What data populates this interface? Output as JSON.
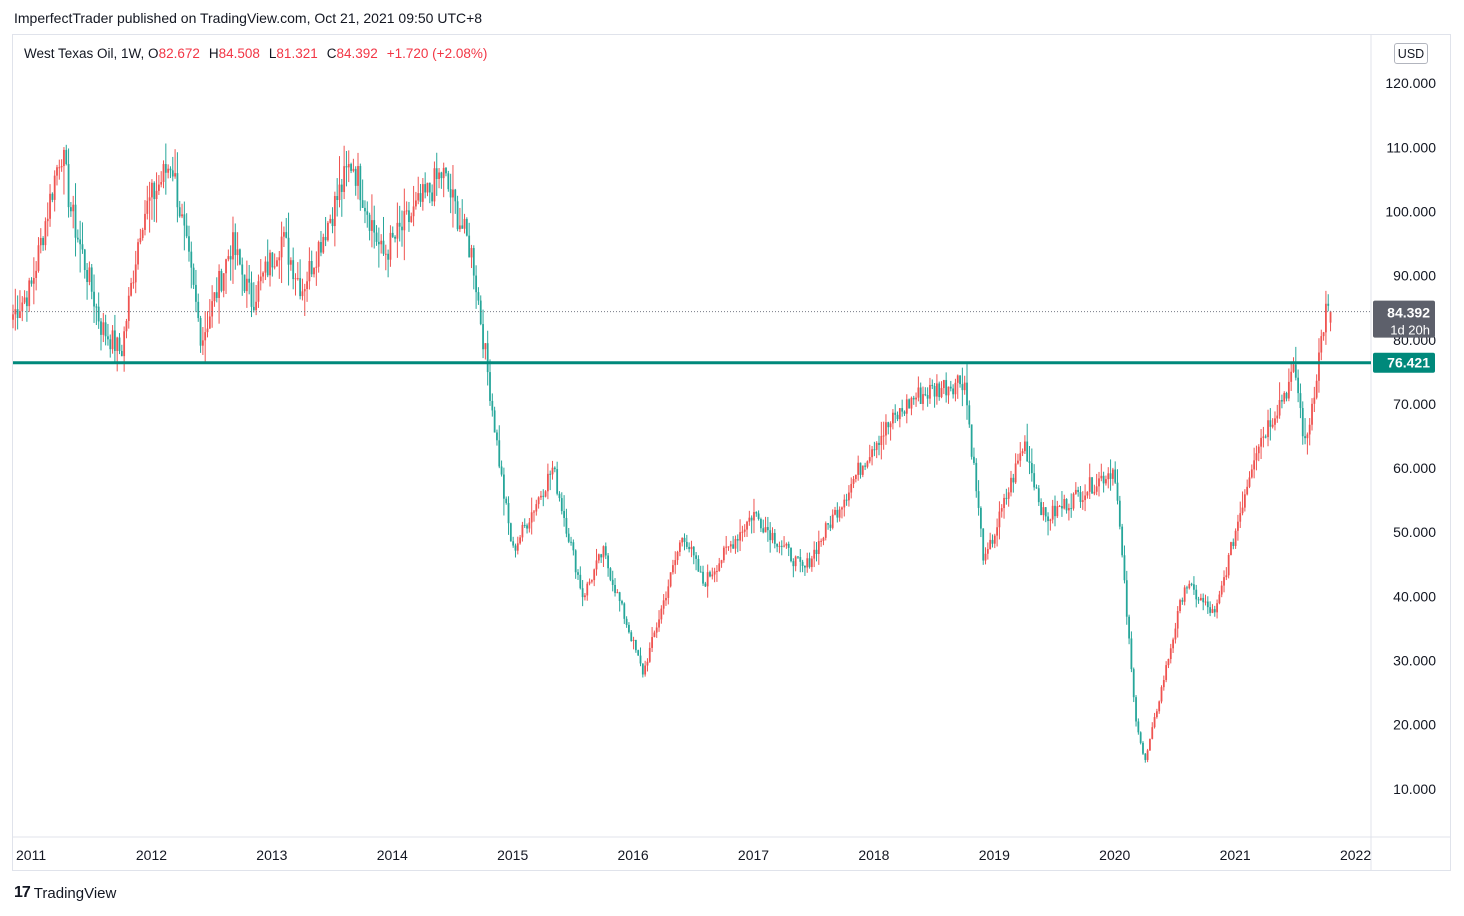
{
  "publish_line": "ImperfectTrader published on TradingView.com, Oct 21, 2021 09:50 UTC+8",
  "legend": {
    "symbol": "West Texas Oil, 1W, ",
    "o_key": "O",
    "o_val": "82.672",
    "h_key": "H",
    "h_val": "84.508",
    "l_key": "L",
    "l_val": "81.321",
    "c_key": "C",
    "c_val": "84.392",
    "change": "+1.720 (+2.08%)"
  },
  "currency_button": "USD",
  "footer_brand": "TradingView",
  "footer_logo": "17",
  "colors": {
    "up": "#ef5350",
    "down": "#26a69a",
    "support_line": "#00897b",
    "last_price_bg": "#5d606b"
  },
  "chart_data": {
    "type": "candlestick",
    "title": "West Texas Oil, 1W",
    "ylim": [
      2.5,
      127.5
    ],
    "y_ticks": [
      "120.000",
      "110.000",
      "100.000",
      "90.000",
      "80.000",
      "70.000",
      "60.000",
      "50.000",
      "40.000",
      "30.000",
      "20.000",
      "10.000"
    ],
    "x_ticks": [
      "2011",
      "2012",
      "2013",
      "2014",
      "2015",
      "2016",
      "2017",
      "2018",
      "2019",
      "2020",
      "2021",
      "2022"
    ],
    "last_price": {
      "value": 84.392,
      "label": "84.392",
      "countdown": "1d 20h"
    },
    "support_level": {
      "value": 76.421,
      "label": "76.421"
    },
    "approx_weekly_closes": [
      {
        "date": "2011-01",
        "close": 88
      },
      {
        "date": "2011-04",
        "close": 110
      },
      {
        "date": "2011-05",
        "close": 100
      },
      {
        "date": "2011-08",
        "close": 82
      },
      {
        "date": "2011-10",
        "close": 78
      },
      {
        "date": "2011-12",
        "close": 99
      },
      {
        "date": "2012-03",
        "close": 108
      },
      {
        "date": "2012-06",
        "close": 80
      },
      {
        "date": "2012-09",
        "close": 95
      },
      {
        "date": "2012-11",
        "close": 86
      },
      {
        "date": "2013-02",
        "close": 96
      },
      {
        "date": "2013-04",
        "close": 88
      },
      {
        "date": "2013-09",
        "close": 108
      },
      {
        "date": "2013-12",
        "close": 93
      },
      {
        "date": "2014-06",
        "close": 106
      },
      {
        "date": "2014-09",
        "close": 93
      },
      {
        "date": "2014-12",
        "close": 57
      },
      {
        "date": "2015-01",
        "close": 47
      },
      {
        "date": "2015-05",
        "close": 60
      },
      {
        "date": "2015-08",
        "close": 40
      },
      {
        "date": "2015-10",
        "close": 47
      },
      {
        "date": "2016-02",
        "close": 28
      },
      {
        "date": "2016-06",
        "close": 50
      },
      {
        "date": "2016-08",
        "close": 42
      },
      {
        "date": "2017-01",
        "close": 53
      },
      {
        "date": "2017-06",
        "close": 44
      },
      {
        "date": "2018-01",
        "close": 64
      },
      {
        "date": "2018-05",
        "close": 71
      },
      {
        "date": "2018-10",
        "close": 74
      },
      {
        "date": "2018-12",
        "close": 45
      },
      {
        "date": "2019-04",
        "close": 64
      },
      {
        "date": "2019-06",
        "close": 52
      },
      {
        "date": "2020-01",
        "close": 60
      },
      {
        "date": "2020-03",
        "close": 22
      },
      {
        "date": "2020-04",
        "close": 14
      },
      {
        "date": "2020-08",
        "close": 42
      },
      {
        "date": "2020-11",
        "close": 37
      },
      {
        "date": "2021-03",
        "close": 63
      },
      {
        "date": "2021-07",
        "close": 75
      },
      {
        "date": "2021-08",
        "close": 63
      },
      {
        "date": "2021-10",
        "close": 84.392
      }
    ]
  }
}
